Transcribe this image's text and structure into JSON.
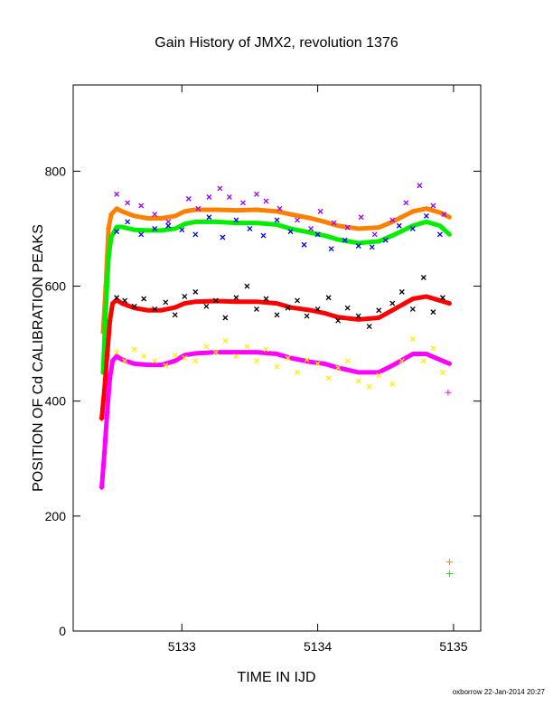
{
  "chart_data": {
    "type": "scatter",
    "title": "Gain History of JMX2, revolution 1376",
    "xlabel": "TIME IN IJD",
    "ylabel": "POSITION OF Cd CALIBRATION PEAKS",
    "xlim": [
      5132.2,
      5135.2
    ],
    "ylim": [
      0,
      950
    ],
    "x_ticks": [
      5133,
      5134,
      5135
    ],
    "x_tick_labels": [
      "5133",
      "5134",
      "5135"
    ],
    "y_ticks": [
      0,
      200,
      400,
      600,
      800
    ],
    "y_tick_labels": [
      "0",
      "200",
      "400",
      "600",
      "800"
    ],
    "grid": false,
    "legend": "none",
    "series": [
      {
        "color": "#ff8000",
        "marker": "line+plus",
        "x": [
          5132.42,
          5132.44,
          5132.46,
          5132.48,
          5132.52,
          5132.56,
          5132.65,
          5132.75,
          5132.85,
          5132.95,
          5133.02,
          5133.1,
          5133.25,
          5133.4,
          5133.55,
          5133.7,
          5133.8,
          5133.95,
          5134.05,
          5134.15,
          5134.3,
          5134.45,
          5134.55,
          5134.7,
          5134.8,
          5134.9,
          5134.97
        ],
        "y": [
          520,
          600,
          700,
          725,
          735,
          730,
          722,
          718,
          718,
          722,
          730,
          733,
          733,
          732,
          733,
          730,
          725,
          718,
          712,
          705,
          700,
          702,
          712,
          730,
          735,
          728,
          720
        ]
      },
      {
        "color": "#00ee00",
        "marker": "line+plus",
        "x": [
          5132.42,
          5132.44,
          5132.46,
          5132.48,
          5132.52,
          5132.56,
          5132.65,
          5132.75,
          5132.85,
          5132.95,
          5133.02,
          5133.1,
          5133.25,
          5133.4,
          5133.55,
          5133.7,
          5133.8,
          5133.95,
          5134.05,
          5134.15,
          5134.3,
          5134.45,
          5134.55,
          5134.7,
          5134.8,
          5134.9,
          5134.97
        ],
        "y": [
          450,
          560,
          650,
          685,
          703,
          703,
          698,
          697,
          697,
          700,
          708,
          712,
          712,
          710,
          710,
          707,
          700,
          693,
          688,
          681,
          675,
          678,
          688,
          705,
          712,
          705,
          690
        ]
      },
      {
        "color": "#ff0000",
        "marker": "line+plus",
        "x": [
          5132.41,
          5132.43,
          5132.45,
          5132.47,
          5132.49,
          5132.52,
          5132.56,
          5132.65,
          5132.75,
          5132.85,
          5132.95,
          5133.02,
          5133.1,
          5133.25,
          5133.4,
          5133.55,
          5133.7,
          5133.8,
          5133.95,
          5134.05,
          5134.15,
          5134.3,
          5134.45,
          5134.55,
          5134.7,
          5134.8,
          5134.9,
          5134.97
        ],
        "y": [
          370,
          420,
          480,
          540,
          570,
          576,
          570,
          562,
          558,
          558,
          563,
          570,
          573,
          574,
          573,
          573,
          570,
          563,
          558,
          553,
          546,
          542,
          545,
          558,
          578,
          582,
          575,
          570
        ]
      },
      {
        "color": "#ff00ff",
        "marker": "line+plus",
        "x": [
          5132.41,
          5132.43,
          5132.45,
          5132.47,
          5132.49,
          5132.52,
          5132.56,
          5132.65,
          5132.75,
          5132.85,
          5132.95,
          5133.02,
          5133.1,
          5133.25,
          5133.4,
          5133.55,
          5133.7,
          5133.8,
          5133.95,
          5134.05,
          5134.15,
          5134.3,
          5134.45,
          5134.55,
          5134.7,
          5134.8,
          5134.9,
          5134.97
        ],
        "y": [
          250,
          310,
          380,
          440,
          470,
          478,
          472,
          465,
          463,
          463,
          470,
          480,
          483,
          485,
          485,
          485,
          482,
          475,
          468,
          465,
          458,
          450,
          450,
          462,
          482,
          482,
          472,
          465
        ]
      },
      {
        "color": "#9900ff",
        "marker": "x",
        "x": [
          5132.52,
          5132.6,
          5132.7,
          5132.8,
          5132.9,
          5133.05,
          5133.12,
          5133.2,
          5133.28,
          5133.35,
          5133.45,
          5133.55,
          5133.62,
          5133.72,
          5133.85,
          5133.95,
          5134.02,
          5134.12,
          5134.22,
          5134.32,
          5134.42,
          5134.55,
          5134.65,
          5134.75,
          5134.85,
          5134.93
        ],
        "y": [
          760,
          745,
          740,
          725,
          712,
          752,
          735,
          755,
          770,
          755,
          745,
          760,
          748,
          735,
          715,
          700,
          730,
          710,
          702,
          720,
          690,
          715,
          745,
          775,
          740,
          725
        ]
      },
      {
        "color": "#0000ff",
        "marker": "x",
        "x": [
          5132.52,
          5132.6,
          5132.7,
          5132.8,
          5132.9,
          5133.0,
          5133.1,
          5133.2,
          5133.3,
          5133.4,
          5133.5,
          5133.6,
          5133.7,
          5133.8,
          5133.9,
          5134.0,
          5134.1,
          5134.2,
          5134.3,
          5134.4,
          5134.5,
          5134.6,
          5134.7,
          5134.8,
          5134.9
        ],
        "y": [
          695,
          712,
          690,
          700,
          705,
          698,
          690,
          720,
          685,
          715,
          700,
          688,
          715,
          695,
          672,
          690,
          665,
          680,
          670,
          668,
          680,
          705,
          700,
          722,
          690
        ]
      },
      {
        "color": "#000000",
        "marker": "x",
        "x": [
          5132.52,
          5132.58,
          5132.65,
          5132.72,
          5132.8,
          5132.88,
          5132.95,
          5133.02,
          5133.1,
          5133.18,
          5133.25,
          5133.32,
          5133.4,
          5133.48,
          5133.55,
          5133.62,
          5133.7,
          5133.78,
          5133.85,
          5133.92,
          5134.0,
          5134.08,
          5134.15,
          5134.22,
          5134.3,
          5134.38,
          5134.45,
          5134.55,
          5134.62,
          5134.7,
          5134.78,
          5134.85,
          5134.92
        ],
        "y": [
          580,
          575,
          565,
          578,
          560,
          572,
          550,
          582,
          590,
          565,
          575,
          545,
          580,
          600,
          560,
          578,
          550,
          562,
          575,
          548,
          560,
          580,
          540,
          562,
          548,
          530,
          558,
          570,
          590,
          560,
          615,
          555,
          580
        ]
      },
      {
        "color": "#ffee00",
        "marker": "x",
        "x": [
          5132.52,
          5132.58,
          5132.65,
          5132.72,
          5132.8,
          5132.88,
          5132.95,
          5133.02,
          5133.1,
          5133.18,
          5133.25,
          5133.32,
          5133.4,
          5133.48,
          5133.55,
          5133.62,
          5133.7,
          5133.78,
          5133.85,
          5133.92,
          5134.0,
          5134.08,
          5134.15,
          5134.22,
          5134.3,
          5134.38,
          5134.45,
          5134.55,
          5134.62,
          5134.7,
          5134.78,
          5134.85,
          5134.92
        ],
        "y": [
          485,
          470,
          490,
          478,
          470,
          462,
          480,
          475,
          470,
          495,
          485,
          505,
          478,
          495,
          470,
          490,
          460,
          475,
          450,
          472,
          465,
          440,
          458,
          470,
          435,
          425,
          445,
          430,
          470,
          508,
          470,
          492,
          450
        ]
      },
      {
        "color": "#ff8000",
        "marker": "plus",
        "x": [
          5134.97
        ],
        "y": [
          120
        ]
      },
      {
        "color": "#00ee00",
        "marker": "plus",
        "x": [
          5134.97
        ],
        "y": [
          100
        ]
      },
      {
        "color": "#ff00ff",
        "marker": "plus",
        "x": [
          5134.96
        ],
        "y": [
          415
        ]
      }
    ]
  },
  "footer": {
    "credit": "oxborrow 22-Jan-2014 20:27"
  }
}
